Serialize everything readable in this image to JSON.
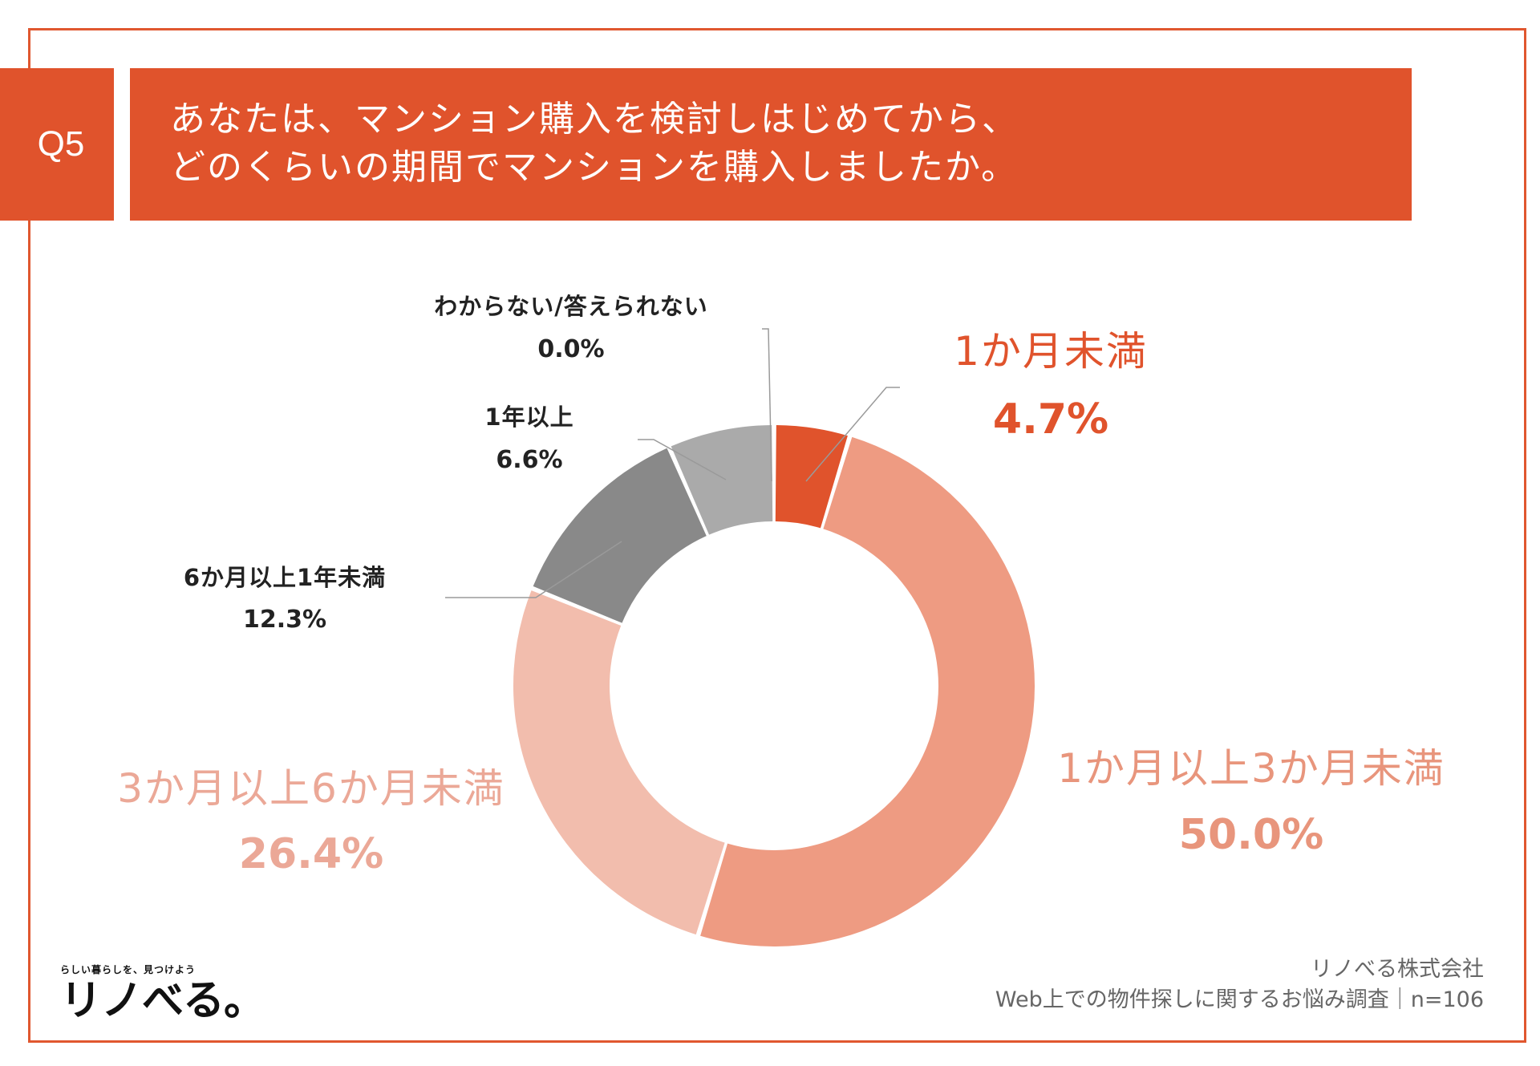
{
  "header": {
    "badge": "Q5",
    "question_line1": "あなたは、マンション購入を検討しはじめてから、",
    "question_line2": "どのくらいの期間でマンションを購入しましたか。"
  },
  "chart_data": {
    "type": "pie",
    "variant": "donut",
    "title": "あなたは、マンション購入を検討しはじめてから、どのくらいの期間でマンションを購入しましたか。",
    "categories": [
      "1か月未満",
      "1か月以上3か月未満",
      "3か月以上6か月未満",
      "6か月以上1年未満",
      "1年以上",
      "わからない/答えられない"
    ],
    "values": [
      4.7,
      50.0,
      26.4,
      12.3,
      6.6,
      0.0
    ],
    "value_labels": [
      "4.7%",
      "50.0%",
      "26.4%",
      "12.3%",
      "6.6%",
      "0.0%"
    ],
    "colors": [
      "#E0532C",
      "#EE9B82",
      "#F2BDAD",
      "#898989",
      "#AAAAAA",
      "#CCCCCC"
    ],
    "label_colors": [
      "#E0532C",
      "#E8957C",
      "#EBA897",
      "#222222",
      "#222222",
      "#222222"
    ],
    "unit": "%",
    "start_angle_deg": 0,
    "direction": "clockwise"
  },
  "footer": {
    "company": "リノべる株式会社",
    "survey": "Web上での物件探しに関するお悩み調査｜n=106",
    "logo_tagline": "らしい暮らしを、見つけよう",
    "logo_text": "リノべる。"
  }
}
